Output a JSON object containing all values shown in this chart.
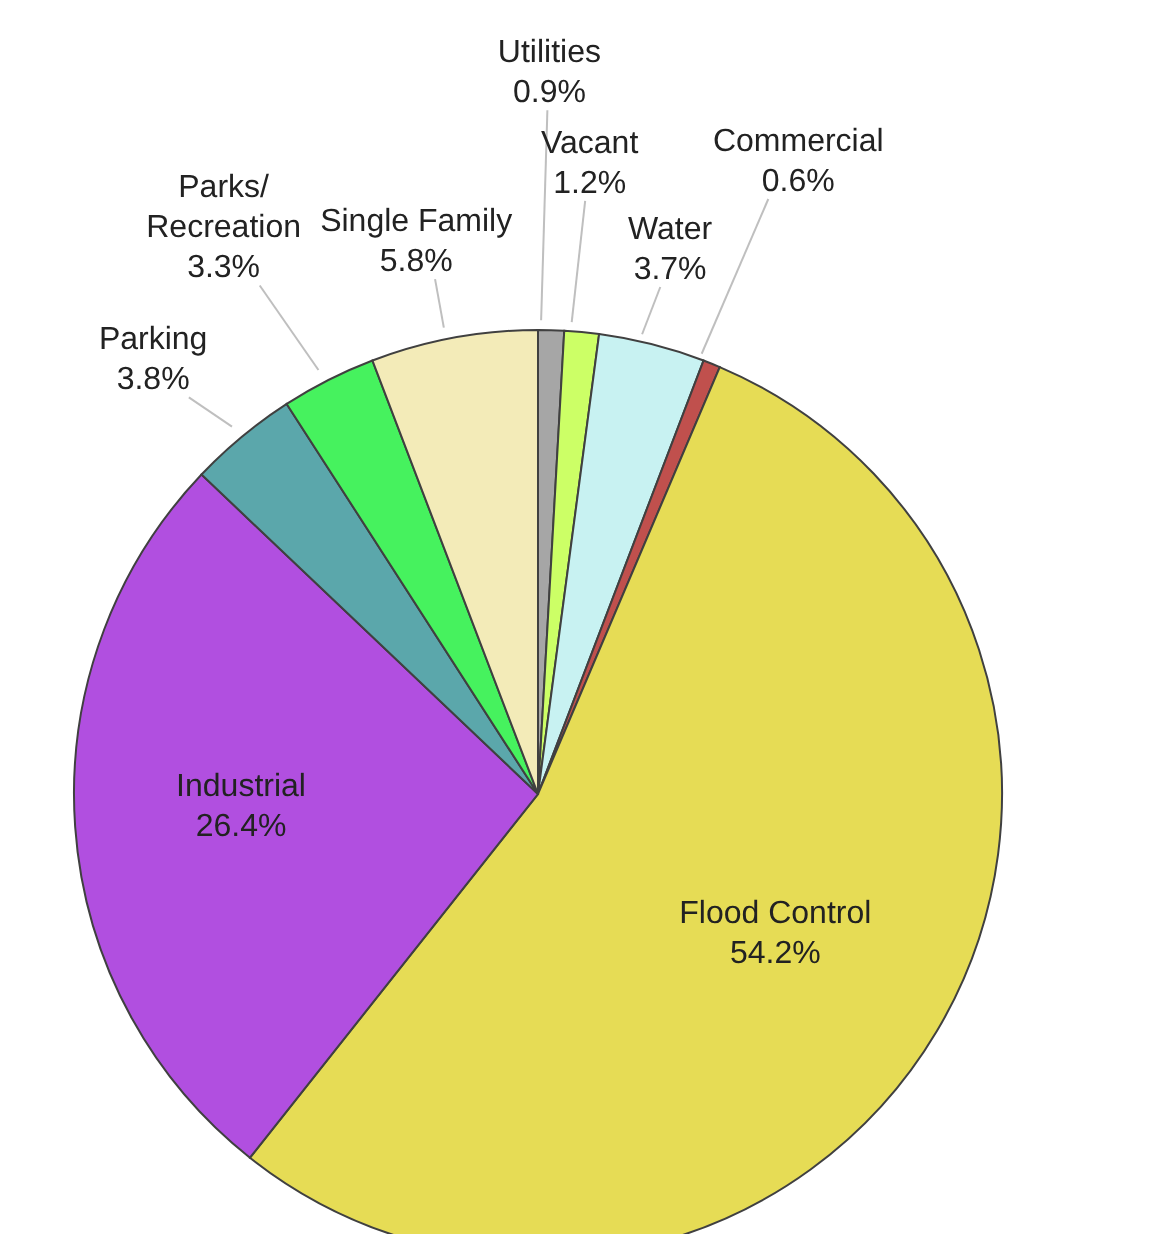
{
  "chart_data": {
    "type": "pie",
    "categories": [
      "Utilities",
      "Vacant",
      "Water",
      "Commercial",
      "Flood Control",
      "Industrial",
      "Parking",
      "Parks/Recreation",
      "Single Family"
    ],
    "values": [
      0.9,
      1.2,
      3.7,
      0.6,
      54.2,
      26.4,
      3.8,
      3.3,
      5.8
    ],
    "value_labels": [
      "0.9%",
      "1.2%",
      "3.7%",
      "0.6%",
      "54.2%",
      "26.4%",
      "3.8%",
      "3.3%",
      "5.8%"
    ],
    "colors": [
      "#a6a6a6",
      "#ccff66",
      "#c8f2f2",
      "#c0504d",
      "#e6dc55",
      "#b14fe0",
      "#5ba7ab",
      "#46f25e",
      "#f3ebb8"
    ]
  }
}
